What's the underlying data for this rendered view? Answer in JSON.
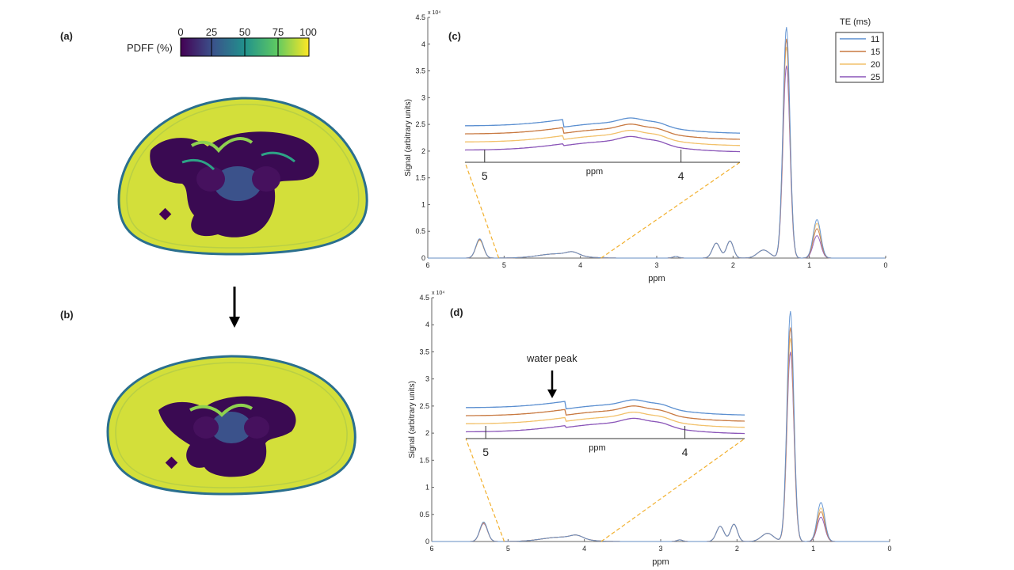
{
  "panels": {
    "a_label": "(a)",
    "b_label": "(b)",
    "c_label": "(c)",
    "d_label": "(d)"
  },
  "colorbar": {
    "label": "PDFF (%)",
    "ticks": [
      "0",
      "25",
      "50",
      "75",
      "100"
    ]
  },
  "legend": {
    "title": "TE (ms)",
    "entries": [
      "11",
      "15",
      "20",
      "25"
    ],
    "colors": [
      "#5b8fd0",
      "#c87941",
      "#f2c16a",
      "#8a55b8"
    ]
  },
  "annotation": {
    "water_peak": "water peak"
  },
  "chart_data": [
    {
      "id": "c",
      "type": "line",
      "xlabel": "ppm",
      "ylabel": "Signal (arbitrary units)",
      "exponent": "x 10⁴",
      "xlim": [
        6,
        0
      ],
      "ylim": [
        0,
        4.5
      ],
      "xticks": [
        "6",
        "5",
        "4",
        "3",
        "2",
        "1",
        "0"
      ],
      "yticks": [
        "0",
        "0.5",
        "1",
        "1.5",
        "2",
        "2.5",
        "3",
        "3.5",
        "4",
        "4.5"
      ],
      "series": [
        {
          "name": "11",
          "main_peak": 4.32,
          "peak_0_9": 0.72,
          "peak_5_3": 0.36
        },
        {
          "name": "15",
          "main_peak": 4.1,
          "peak_0_9": 0.55,
          "peak_5_3": 0.35
        },
        {
          "name": "20",
          "main_peak": 3.95,
          "peak_0_9": 0.65,
          "peak_5_3": 0.33
        },
        {
          "name": "25",
          "main_peak": 3.6,
          "peak_0_9": 0.42,
          "peak_5_3": 0.34
        }
      ],
      "inset": {
        "xlabel": "ppm",
        "xticks": [
          "5",
          "4"
        ],
        "range": [
          5.1,
          3.7
        ]
      }
    },
    {
      "id": "d",
      "type": "line",
      "xlabel": "ppm",
      "ylabel": "Signal (arbitrary units)",
      "exponent": "x 10⁴",
      "xlim": [
        6,
        0
      ],
      "ylim": [
        0,
        4.5
      ],
      "xticks": [
        "6",
        "5",
        "4",
        "3",
        "2",
        "1",
        "0"
      ],
      "yticks": [
        "0",
        "0.5",
        "1",
        "1.5",
        "2",
        "2.5",
        "3",
        "3.5",
        "4",
        "4.5"
      ],
      "series": [
        {
          "name": "11",
          "main_peak": 4.25,
          "peak_0_9": 0.72,
          "peak_5_3": 0.36
        },
        {
          "name": "15",
          "main_peak": 3.95,
          "peak_0_9": 0.55,
          "peak_5_3": 0.35
        },
        {
          "name": "20",
          "main_peak": 3.75,
          "peak_0_9": 0.62,
          "peak_5_3": 0.34
        },
        {
          "name": "25",
          "main_peak": 3.5,
          "peak_0_9": 0.45,
          "peak_5_3": 0.33
        }
      ],
      "inset": {
        "xlabel": "ppm",
        "xticks": [
          "5",
          "4"
        ],
        "range": [
          5.1,
          3.7
        ]
      }
    }
  ]
}
